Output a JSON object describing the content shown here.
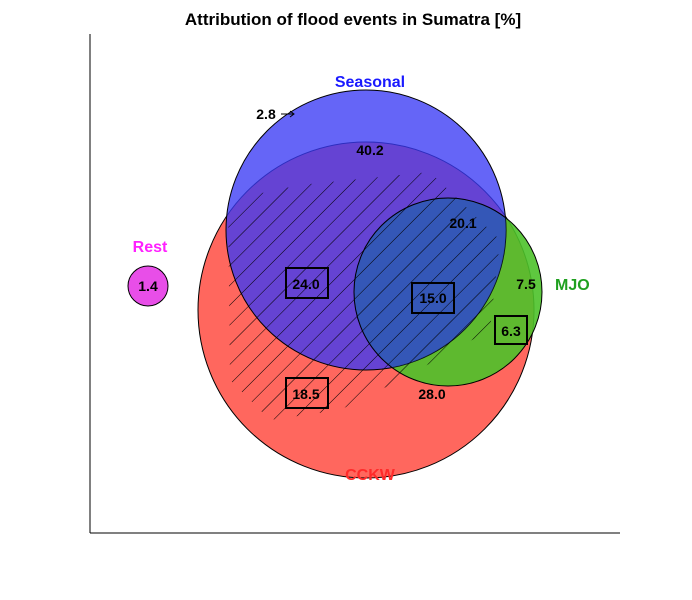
{
  "chart_data": {
    "type": "venn",
    "title": "Attribution of flood events in Sumatra [%]",
    "sets": [
      {
        "key": "ccKW",
        "name": "CCKW",
        "color": "#ff5a50",
        "label_color": "#ff2a2a"
      },
      {
        "key": "seasonal",
        "name": "Seasonal",
        "color": "#3a3af5",
        "label_color": "#1a1aff"
      },
      {
        "key": "mjo",
        "name": "MJO",
        "color": "#4cc22a",
        "label_color": "#1fa01f"
      },
      {
        "key": "rest",
        "name": "Rest",
        "color": "#e84ee8",
        "label_color": "#ff20ff"
      }
    ],
    "regions": [
      {
        "sets": [
          "seasonal"
        ],
        "value": "2.8",
        "boxed": false,
        "hatched": false
      },
      {
        "sets": [
          "seasonal",
          "ccKW"
        ],
        "value": "40.2",
        "boxed": false,
        "hatched": false
      },
      {
        "sets": [
          "seasonal",
          "ccKW",
          "mjo"
        ],
        "value": "20.1",
        "boxed": false,
        "hatched": false
      },
      {
        "sets": [
          "seasonal",
          "ccKW"
        ],
        "value": "24.0",
        "boxed": true,
        "hatched": true
      },
      {
        "sets": [
          "seasonal",
          "ccKW",
          "mjo"
        ],
        "value": "15.0",
        "boxed": true,
        "hatched": true
      },
      {
        "sets": [
          "mjo"
        ],
        "value": "7.5",
        "boxed": false,
        "hatched": false
      },
      {
        "sets": [
          "ccKW",
          "mjo"
        ],
        "value": "6.3",
        "boxed": true,
        "hatched": false
      },
      {
        "sets": [
          "ccKW"
        ],
        "value": "18.5",
        "boxed": true,
        "hatched": true
      },
      {
        "sets": [
          "ccKW"
        ],
        "value": "28.0",
        "boxed": false,
        "hatched": false
      },
      {
        "sets": [
          "rest"
        ],
        "value": "1.4",
        "boxed": false,
        "hatched": false
      }
    ],
    "grid": false
  }
}
